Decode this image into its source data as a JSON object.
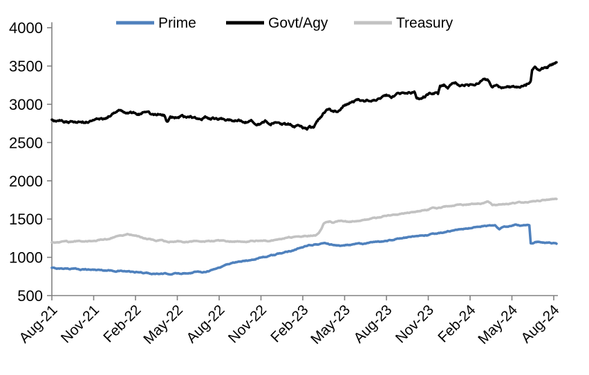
{
  "chart_data": {
    "type": "line",
    "title": "",
    "background": "#FFFFFF",
    "axis_color": "#808080",
    "grid": false,
    "legend_position": "top",
    "ylim": [
      500,
      4000
    ],
    "y_ticks": [
      4000,
      3500,
      3000,
      2500,
      2000,
      1500,
      1000,
      500
    ],
    "x_tick_labels": [
      "Aug-21",
      "Nov-21",
      "Feb-22",
      "May-22",
      "Aug-22",
      "Nov-22",
      "Feb-23",
      "May-23",
      "Aug-23",
      "Nov-23",
      "Feb-24",
      "May-24",
      "Aug-24"
    ],
    "x_unit": "months since Aug-2021 (fractional months)",
    "series": [
      {
        "name": "Prime",
        "color": "#4F81BD",
        "points": [
          [
            0,
            860
          ],
          [
            0.5,
            852
          ],
          [
            1,
            856
          ],
          [
            1.5,
            850
          ],
          [
            2,
            845
          ],
          [
            2.5,
            841
          ],
          [
            3,
            838
          ],
          [
            3.5,
            834
          ],
          [
            4,
            830
          ],
          [
            4.5,
            825
          ],
          [
            5,
            820
          ],
          [
            5.5,
            812
          ],
          [
            6,
            805
          ],
          [
            6.5,
            798
          ],
          [
            7,
            790
          ],
          [
            7.5,
            785
          ],
          [
            8,
            783
          ],
          [
            8.5,
            785
          ],
          [
            9,
            788
          ],
          [
            9.5,
            792
          ],
          [
            10,
            800
          ],
          [
            10.3,
            812
          ],
          [
            10.6,
            806
          ],
          [
            11,
            815
          ],
          [
            11.5,
            835
          ],
          [
            12,
            865
          ],
          [
            12.5,
            905
          ],
          [
            13,
            930
          ],
          [
            13.5,
            945
          ],
          [
            14,
            955
          ],
          [
            14.5,
            975
          ],
          [
            15,
            1000
          ],
          [
            15.5,
            1015
          ],
          [
            16,
            1030
          ],
          [
            16.5,
            1055
          ],
          [
            17,
            1080
          ],
          [
            17.5,
            1105
          ],
          [
            18,
            1130
          ],
          [
            18.4,
            1150
          ],
          [
            18.8,
            1165
          ],
          [
            19.2,
            1175
          ],
          [
            19.6,
            1185
          ],
          [
            20,
            1170
          ],
          [
            20.4,
            1155
          ],
          [
            20.8,
            1152
          ],
          [
            21.2,
            1165
          ],
          [
            21.6,
            1172
          ],
          [
            22,
            1180
          ],
          [
            22.4,
            1175
          ],
          [
            22.8,
            1188
          ],
          [
            23.2,
            1195
          ],
          [
            23.6,
            1205
          ],
          [
            24,
            1220
          ],
          [
            24.5,
            1235
          ],
          [
            25,
            1248
          ],
          [
            25.5,
            1258
          ],
          [
            26,
            1268
          ],
          [
            26.5,
            1278
          ],
          [
            27,
            1290
          ],
          [
            27.5,
            1305
          ],
          [
            28,
            1320
          ],
          [
            28.5,
            1340
          ],
          [
            29,
            1355
          ],
          [
            29.5,
            1370
          ],
          [
            30,
            1385
          ],
          [
            30.5,
            1398
          ],
          [
            31,
            1408
          ],
          [
            31.4,
            1415
          ],
          [
            31.8,
            1408
          ],
          [
            32.1,
            1362
          ],
          [
            32.4,
            1398
          ],
          [
            32.8,
            1405
          ],
          [
            33.3,
            1422
          ],
          [
            33.6,
            1412
          ],
          [
            34,
            1415
          ],
          [
            34.25,
            1418
          ],
          [
            34.35,
            1185
          ],
          [
            34.6,
            1192
          ],
          [
            34.9,
            1205
          ],
          [
            35.2,
            1198
          ],
          [
            35.5,
            1190
          ],
          [
            35.8,
            1183
          ],
          [
            36.2,
            1178
          ]
        ]
      },
      {
        "name": "Govt/Agy",
        "color": "#000000",
        "points": [
          [
            0,
            2790
          ],
          [
            0.4,
            2772
          ],
          [
            0.8,
            2780
          ],
          [
            1.2,
            2758
          ],
          [
            1.6,
            2775
          ],
          [
            2,
            2785
          ],
          [
            2.4,
            2768
          ],
          [
            2.8,
            2790
          ],
          [
            3.2,
            2800
          ],
          [
            3.6,
            2812
          ],
          [
            4,
            2832
          ],
          [
            4.4,
            2880
          ],
          [
            4.8,
            2948
          ],
          [
            5.1,
            2930
          ],
          [
            5.4,
            2895
          ],
          [
            5.8,
            2878
          ],
          [
            6,
            2886
          ],
          [
            6.3,
            2868
          ],
          [
            6.6,
            2890
          ],
          [
            7,
            2878
          ],
          [
            7.4,
            2858
          ],
          [
            7.7,
            2874
          ],
          [
            8.1,
            2852
          ],
          [
            8.25,
            2790
          ],
          [
            8.5,
            2830
          ],
          [
            8.8,
            2818
          ],
          [
            9.2,
            2838
          ],
          [
            9.6,
            2824
          ],
          [
            10,
            2830
          ],
          [
            10.5,
            2818
          ],
          [
            11,
            2828
          ],
          [
            11.5,
            2815
          ],
          [
            12,
            2810
          ],
          [
            12.5,
            2798
          ],
          [
            13,
            2790
          ],
          [
            13.5,
            2784
          ],
          [
            14,
            2778
          ],
          [
            14.5,
            2768
          ],
          [
            15,
            2748
          ],
          [
            15.3,
            2772
          ],
          [
            15.7,
            2742
          ],
          [
            16,
            2762
          ],
          [
            16.4,
            2742
          ],
          [
            16.8,
            2722
          ],
          [
            17.1,
            2734
          ],
          [
            17.4,
            2708
          ],
          [
            17.7,
            2718
          ],
          [
            18,
            2688
          ],
          [
            18.3,
            2668
          ],
          [
            18.5,
            2694
          ],
          [
            18.8,
            2678
          ],
          [
            19.1,
            2778
          ],
          [
            19.4,
            2868
          ],
          [
            19.7,
            2918
          ],
          [
            19.9,
            2948
          ],
          [
            20.1,
            2915
          ],
          [
            20.4,
            2908
          ],
          [
            20.7,
            2934
          ],
          [
            21,
            2988
          ],
          [
            21.3,
            3008
          ],
          [
            21.6,
            3038
          ],
          [
            22,
            3068
          ],
          [
            22.4,
            3048
          ],
          [
            22.8,
            3062
          ],
          [
            23.2,
            3078
          ],
          [
            23.6,
            3094
          ],
          [
            24,
            3112
          ],
          [
            24.4,
            3098
          ],
          [
            24.8,
            3122
          ],
          [
            25.2,
            3148
          ],
          [
            25.6,
            3168
          ],
          [
            26,
            3158
          ],
          [
            26.15,
            3078
          ],
          [
            26.5,
            3088
          ],
          [
            27,
            3128
          ],
          [
            27.4,
            3148
          ],
          [
            27.7,
            3138
          ],
          [
            27.85,
            3248
          ],
          [
            28.1,
            3258
          ],
          [
            28.4,
            3228
          ],
          [
            28.7,
            3262
          ],
          [
            29,
            3268
          ],
          [
            29.4,
            3244
          ],
          [
            29.8,
            3268
          ],
          [
            30.2,
            3258
          ],
          [
            30.6,
            3284
          ],
          [
            31,
            3328
          ],
          [
            31.3,
            3318
          ],
          [
            31.6,
            3228
          ],
          [
            31.9,
            3258
          ],
          [
            32.1,
            3228
          ],
          [
            32.4,
            3214
          ],
          [
            32.8,
            3222
          ],
          [
            33.2,
            3228
          ],
          [
            33.6,
            3238
          ],
          [
            34,
            3258
          ],
          [
            34.2,
            3288
          ],
          [
            34.35,
            3318
          ],
          [
            34.45,
            3458
          ],
          [
            34.7,
            3474
          ],
          [
            35,
            3460
          ],
          [
            35.3,
            3478
          ],
          [
            35.7,
            3494
          ],
          [
            36,
            3528
          ],
          [
            36.2,
            3548
          ]
        ]
      },
      {
        "name": "Treasury",
        "color": "#C2C2C2",
        "points": [
          [
            0,
            1195
          ],
          [
            0.5,
            1192
          ],
          [
            1,
            1205
          ],
          [
            1.5,
            1198
          ],
          [
            2,
            1210
          ],
          [
            2.5,
            1206
          ],
          [
            3,
            1218
          ],
          [
            3.5,
            1228
          ],
          [
            4,
            1240
          ],
          [
            4.7,
            1270
          ],
          [
            5.4,
            1305
          ],
          [
            6,
            1280
          ],
          [
            6.5,
            1255
          ],
          [
            7,
            1235
          ],
          [
            7.5,
            1222
          ],
          [
            8,
            1215
          ],
          [
            8.4,
            1192
          ],
          [
            9,
            1210
          ],
          [
            9.5,
            1202
          ],
          [
            10,
            1206
          ],
          [
            10.5,
            1210
          ],
          [
            11,
            1208
          ],
          [
            11.5,
            1212
          ],
          [
            12,
            1216
          ],
          [
            12.5,
            1214
          ],
          [
            13,
            1210
          ],
          [
            13.5,
            1214
          ],
          [
            14,
            1210
          ],
          [
            14.5,
            1216
          ],
          [
            15,
            1220
          ],
          [
            15.5,
            1212
          ],
          [
            16,
            1235
          ],
          [
            16.5,
            1250
          ],
          [
            17,
            1262
          ],
          [
            17.5,
            1270
          ],
          [
            18,
            1278
          ],
          [
            18.6,
            1288
          ],
          [
            19,
            1298
          ],
          [
            19.15,
            1310
          ],
          [
            19.5,
            1438
          ],
          [
            19.9,
            1462
          ],
          [
            20.2,
            1455
          ],
          [
            20.6,
            1468
          ],
          [
            21,
            1472
          ],
          [
            21.5,
            1470
          ],
          [
            22,
            1480
          ],
          [
            22.5,
            1492
          ],
          [
            23,
            1505
          ],
          [
            23.5,
            1520
          ],
          [
            24,
            1545
          ],
          [
            24.5,
            1558
          ],
          [
            25,
            1570
          ],
          [
            25.5,
            1582
          ],
          [
            26,
            1595
          ],
          [
            26.5,
            1610
          ],
          [
            27,
            1625
          ],
          [
            27.3,
            1648
          ],
          [
            27.6,
            1640
          ],
          [
            28,
            1660
          ],
          [
            28.5,
            1672
          ],
          [
            29,
            1682
          ],
          [
            29.5,
            1690
          ],
          [
            30,
            1697
          ],
          [
            30.5,
            1702
          ],
          [
            31,
            1708
          ],
          [
            31.3,
            1728
          ],
          [
            31.6,
            1690
          ],
          [
            32,
            1688
          ],
          [
            32.4,
            1696
          ],
          [
            33,
            1700
          ],
          [
            33.4,
            1708
          ],
          [
            33.8,
            1718
          ],
          [
            34.2,
            1728
          ],
          [
            34.6,
            1735
          ],
          [
            35,
            1742
          ],
          [
            35.4,
            1748
          ],
          [
            35.8,
            1755
          ],
          [
            36.2,
            1763
          ]
        ]
      }
    ]
  }
}
